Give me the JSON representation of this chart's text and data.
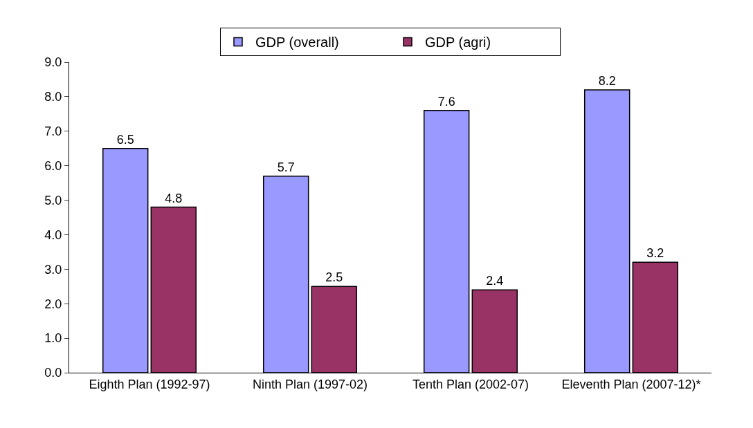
{
  "chart_data": {
    "type": "bar",
    "categories": [
      "Eighth Plan (1992-97)",
      "Ninth Plan (1997-02)",
      "Tenth Plan (2002-07)",
      "Eleventh Plan (2007-12)*"
    ],
    "series": [
      {
        "name": "GDP (overall)",
        "color": "#9999ff",
        "values": [
          6.5,
          5.7,
          7.6,
          8.2
        ]
      },
      {
        "name": "GDP (agri)",
        "color": "#993366",
        "values": [
          4.8,
          2.5,
          2.4,
          3.2
        ]
      }
    ],
    "ylim": [
      0,
      9
    ],
    "yticks": [
      {
        "value": 0,
        "label": "0.0"
      },
      {
        "value": 1,
        "label": "1.0"
      },
      {
        "value": 2,
        "label": "2.0"
      },
      {
        "value": 3,
        "label": "3.0"
      },
      {
        "value": 4,
        "label": "4.0"
      },
      {
        "value": 5,
        "label": "5.0"
      },
      {
        "value": 6,
        "label": "6.0"
      },
      {
        "value": 7,
        "label": "7.0"
      },
      {
        "value": 8,
        "label": "8.0"
      },
      {
        "value": 9,
        "label": "9.0"
      }
    ],
    "data_labels": true,
    "legend": "top"
  }
}
